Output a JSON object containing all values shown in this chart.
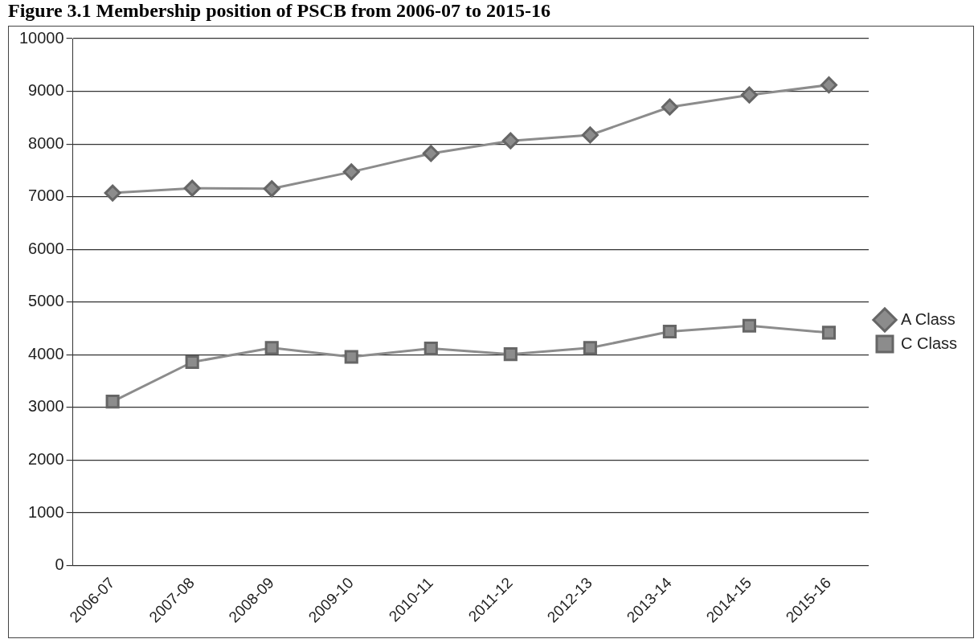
{
  "chart_data": {
    "type": "line",
    "title": "Figure 3.1 Membership position of PSCB from 2006-07 to 2015-16",
    "categories": [
      "2006-07",
      "2007-08",
      "2008-09",
      "2009-10",
      "2010-11",
      "2011-12",
      "2012-13",
      "2013-14",
      "2014-15",
      "2015-16"
    ],
    "series": [
      {
        "name": "A Class",
        "color": "#8c8c8c",
        "marker": "diamond",
        "values": [
          7070,
          7160,
          7150,
          7470,
          7820,
          8060,
          8170,
          8700,
          8930,
          9120
        ]
      },
      {
        "name": "C Class",
        "color": "#8c8c8c",
        "marker": "square",
        "values": [
          3110,
          3860,
          4130,
          3960,
          4120,
          4010,
          4130,
          4440,
          4550,
          4420
        ]
      }
    ],
    "ylim": [
      0,
      10000
    ],
    "yticks": [
      0,
      1000,
      2000,
      3000,
      4000,
      5000,
      6000,
      7000,
      8000,
      9000,
      10000
    ],
    "grid": "y",
    "legend": "right"
  }
}
